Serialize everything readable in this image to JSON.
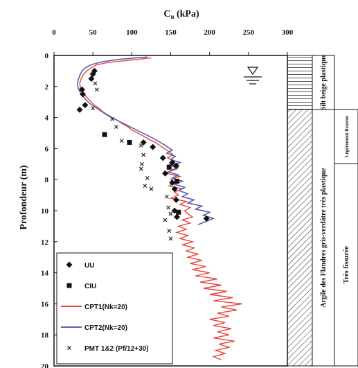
{
  "chart_data": {
    "type": "line",
    "title": "",
    "xlabel_main": "C",
    "xlabel_sub": "u",
    "xlabel_unit": " (kPa)",
    "ylabel": "Profondeur (m)",
    "xlim": [
      0,
      300
    ],
    "ylim": [
      0,
      20
    ],
    "x_ticks": [
      "0",
      "50",
      "100",
      "150",
      "200",
      "250",
      "300"
    ],
    "y_ticks": [
      "0",
      "2",
      "4",
      "6",
      "8",
      "10",
      "12",
      "14",
      "16",
      "18",
      "20"
    ],
    "colors": {
      "cpt1": "#e8453c",
      "cpt2": "#5a5fb0",
      "uu": "#111111",
      "ciu": "#111111",
      "pmt": "#333333"
    },
    "legend": [
      {
        "key": "uu",
        "label": "UU",
        "marker": "diamond"
      },
      {
        "key": "ciu",
        "label": "CIU",
        "marker": "square"
      },
      {
        "key": "cpt1",
        "label": "CPT1(Nk=20)",
        "marker": "line"
      },
      {
        "key": "cpt2",
        "label": "CPT2(Nk=20)",
        "marker": "line"
      },
      {
        "key": "pmt",
        "label": "PMT 1&2 (Pf/12+30)",
        "marker": "x"
      }
    ],
    "uu": [
      [
        50,
        1.2
      ],
      [
        52,
        1.0
      ],
      [
        48,
        1.5
      ],
      [
        36,
        2.2
      ],
      [
        37,
        2.5
      ],
      [
        40,
        3.2
      ],
      [
        33,
        3.5
      ],
      [
        115,
        5.6
      ],
      [
        127,
        5.9
      ],
      [
        140,
        6.6
      ],
      [
        152,
        6.9
      ],
      [
        157,
        7.1
      ],
      [
        143,
        7.6
      ],
      [
        152,
        8.2
      ],
      [
        155,
        8.6
      ],
      [
        157,
        9.3
      ],
      [
        155,
        10.0
      ],
      [
        158,
        10.4
      ],
      [
        196,
        10.5
      ]
    ],
    "ciu": [
      [
        65,
        5.1
      ],
      [
        97,
        5.6
      ],
      [
        148,
        7.2
      ],
      [
        158,
        8.1
      ],
      [
        160,
        10.1
      ]
    ],
    "pmt": [
      [
        53,
        1.8
      ],
      [
        55,
        2.2
      ],
      [
        50,
        3.4
      ],
      [
        75,
        4.1
      ],
      [
        80,
        4.6
      ],
      [
        87,
        5.5
      ],
      [
        112,
        5.8
      ],
      [
        115,
        6.4
      ],
      [
        113,
        7.0
      ],
      [
        112,
        7.3
      ],
      [
        120,
        7.9
      ],
      [
        117,
        8.4
      ],
      [
        125,
        8.6
      ],
      [
        145,
        9.1
      ],
      [
        147,
        9.8
      ],
      [
        150,
        10.2
      ],
      [
        143,
        10.6
      ],
      [
        148,
        11.3
      ],
      [
        150,
        11.8
      ]
    ],
    "cpt1": [
      [
        125,
        0.15
      ],
      [
        100,
        0.3
      ],
      [
        70,
        0.45
      ],
      [
        55,
        0.6
      ],
      [
        48,
        0.8
      ],
      [
        42,
        1.0
      ],
      [
        38,
        1.2
      ],
      [
        35,
        1.5
      ],
      [
        33,
        1.8
      ],
      [
        34,
        2.1
      ],
      [
        38,
        2.4
      ],
      [
        42,
        2.7
      ],
      [
        48,
        3.0
      ],
      [
        52,
        3.2
      ],
      [
        58,
        3.4
      ],
      [
        62,
        3.6
      ],
      [
        68,
        3.8
      ],
      [
        75,
        4.0
      ],
      [
        82,
        4.2
      ],
      [
        88,
        4.4
      ],
      [
        95,
        4.6
      ],
      [
        100,
        4.8
      ],
      [
        108,
        5.0
      ],
      [
        115,
        5.2
      ],
      [
        122,
        5.4
      ],
      [
        130,
        5.6
      ],
      [
        136,
        5.8
      ],
      [
        142,
        6.0
      ],
      [
        148,
        6.2
      ],
      [
        153,
        6.4
      ],
      [
        146,
        6.6
      ],
      [
        155,
        6.8
      ],
      [
        148,
        7.0
      ],
      [
        160,
        7.2
      ],
      [
        150,
        7.4
      ],
      [
        145,
        7.6
      ],
      [
        162,
        7.8
      ],
      [
        150,
        8.0
      ],
      [
        155,
        8.2
      ],
      [
        148,
        8.4
      ],
      [
        165,
        8.6
      ],
      [
        155,
        8.8
      ],
      [
        160,
        9.0
      ],
      [
        150,
        9.2
      ],
      [
        170,
        9.4
      ],
      [
        162,
        9.6
      ],
      [
        175,
        9.8
      ],
      [
        168,
        10.0
      ],
      [
        172,
        10.2
      ],
      [
        178,
        10.4
      ],
      [
        165,
        10.6
      ],
      [
        175,
        10.8
      ],
      [
        160,
        11.0
      ],
      [
        170,
        11.2
      ],
      [
        158,
        11.4
      ],
      [
        172,
        11.6
      ],
      [
        162,
        11.8
      ],
      [
        178,
        12.0
      ],
      [
        165,
        12.2
      ],
      [
        180,
        12.4
      ],
      [
        170,
        12.6
      ],
      [
        185,
        12.8
      ],
      [
        172,
        13.0
      ],
      [
        190,
        13.2
      ],
      [
        175,
        13.4
      ],
      [
        195,
        13.6
      ],
      [
        178,
        13.8
      ],
      [
        200,
        14.0
      ],
      [
        182,
        14.2
      ],
      [
        210,
        14.4
      ],
      [
        188,
        14.6
      ],
      [
        215,
        14.8
      ],
      [
        192,
        15.0
      ],
      [
        222,
        15.2
      ],
      [
        200,
        15.4
      ],
      [
        230,
        15.6
      ],
      [
        205,
        15.8
      ],
      [
        242,
        16.0
      ],
      [
        215,
        16.2
      ],
      [
        235,
        16.4
      ],
      [
        210,
        16.6
      ],
      [
        225,
        16.8
      ],
      [
        200,
        17.0
      ],
      [
        220,
        17.2
      ],
      [
        205,
        17.4
      ],
      [
        228,
        17.6
      ],
      [
        210,
        17.8
      ],
      [
        225,
        18.0
      ],
      [
        205,
        18.2
      ],
      [
        232,
        18.4
      ],
      [
        212,
        18.6
      ],
      [
        225,
        18.8
      ],
      [
        208,
        19.0
      ],
      [
        220,
        19.2
      ],
      [
        205,
        19.4
      ],
      [
        215,
        19.6
      ]
    ],
    "cpt2": [
      [
        120,
        0.1
      ],
      [
        85,
        0.25
      ],
      [
        62,
        0.4
      ],
      [
        48,
        0.6
      ],
      [
        40,
        0.8
      ],
      [
        36,
        1.0
      ],
      [
        33,
        1.3
      ],
      [
        31,
        1.6
      ],
      [
        30,
        1.9
      ],
      [
        32,
        2.2
      ],
      [
        35,
        2.5
      ],
      [
        40,
        2.8
      ],
      [
        46,
        3.1
      ],
      [
        52,
        3.3
      ],
      [
        58,
        3.5
      ],
      [
        64,
        3.7
      ],
      [
        70,
        3.9
      ],
      [
        78,
        4.1
      ],
      [
        86,
        4.3
      ],
      [
        94,
        4.5
      ],
      [
        102,
        4.7
      ],
      [
        110,
        4.9
      ],
      [
        118,
        5.1
      ],
      [
        126,
        5.3
      ],
      [
        133,
        5.5
      ],
      [
        140,
        5.7
      ],
      [
        146,
        5.9
      ],
      [
        152,
        6.1
      ],
      [
        145,
        6.3
      ],
      [
        156,
        6.5
      ],
      [
        150,
        6.7
      ],
      [
        162,
        6.9
      ],
      [
        152,
        7.1
      ],
      [
        158,
        7.3
      ],
      [
        147,
        7.5
      ],
      [
        160,
        7.7
      ],
      [
        152,
        7.9
      ],
      [
        165,
        8.1
      ],
      [
        155,
        8.3
      ],
      [
        168,
        8.5
      ],
      [
        160,
        8.7
      ],
      [
        172,
        8.9
      ],
      [
        165,
        9.1
      ],
      [
        180,
        9.3
      ],
      [
        172,
        9.5
      ],
      [
        190,
        9.7
      ],
      [
        182,
        9.9
      ],
      [
        200,
        10.1
      ],
      [
        192,
        10.3
      ],
      [
        205,
        10.5
      ],
      [
        195,
        10.7
      ],
      [
        185,
        10.9
      ]
    ],
    "strata": [
      {
        "label": "Silt beige plastique",
        "top": 0,
        "bottom": 3.5
      },
      {
        "label": "Argile des Flandres gris-verdâtre très plastique",
        "top": 3.5,
        "bottom": 20
      }
    ],
    "strata_notes": [
      {
        "label": "Légèrement fissurée",
        "top": 3.5,
        "bottom": 7.0
      },
      {
        "label": "Très fissurée",
        "top": 7.0,
        "bottom": 20
      }
    ]
  }
}
